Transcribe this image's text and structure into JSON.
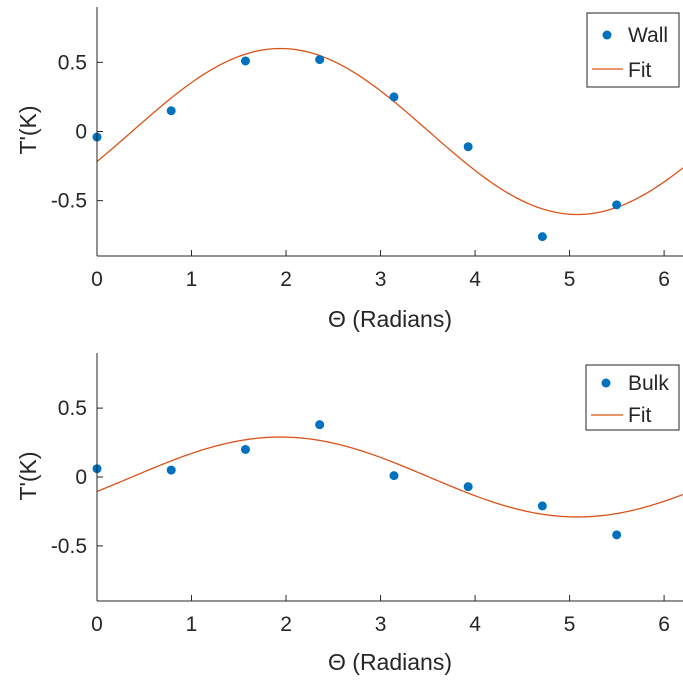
{
  "chart_data": [
    {
      "type": "scatter",
      "xlabel": "Θ (Radians)",
      "ylabel": "T'(K)",
      "xlim": [
        0,
        6.2
      ],
      "ylim": [
        -0.9,
        0.9
      ],
      "xticks": [
        0,
        1,
        2,
        3,
        4,
        5,
        6
      ],
      "yticks": [
        -0.5,
        0,
        0.5
      ],
      "grid": false,
      "legend_position": "top-right",
      "series": [
        {
          "name": "Wall",
          "type": "scatter",
          "color": "#0072BD",
          "x": [
            0,
            0.785,
            1.571,
            2.356,
            3.142,
            3.927,
            4.712,
            5.498
          ],
          "y": [
            -0.04,
            0.15,
            0.51,
            0.52,
            0.25,
            -0.11,
            -0.76,
            -0.53
          ]
        },
        {
          "name": "Fit",
          "type": "line",
          "color": "#D95319",
          "function": "sine",
          "amplitude": 0.6,
          "phase": 0.37
        }
      ]
    },
    {
      "type": "scatter",
      "xlabel": "Θ (Radians)",
      "ylabel": "T'(K)",
      "xlim": [
        0,
        6.2
      ],
      "ylim": [
        -0.9,
        0.9
      ],
      "xticks": [
        0,
        1,
        2,
        3,
        4,
        5,
        6
      ],
      "yticks": [
        -0.5,
        0,
        0.5
      ],
      "grid": false,
      "legend_position": "top-right",
      "series": [
        {
          "name": "Bulk",
          "type": "scatter",
          "color": "#0072BD",
          "x": [
            0,
            0.785,
            1.571,
            2.356,
            3.142,
            3.927,
            4.712,
            5.498
          ],
          "y": [
            0.06,
            0.05,
            0.2,
            0.38,
            0.01,
            -0.07,
            -0.21,
            -0.42
          ]
        },
        {
          "name": "Fit",
          "type": "line",
          "color": "#D95319",
          "function": "sine",
          "amplitude": 0.29,
          "phase": 0.37
        }
      ]
    }
  ]
}
